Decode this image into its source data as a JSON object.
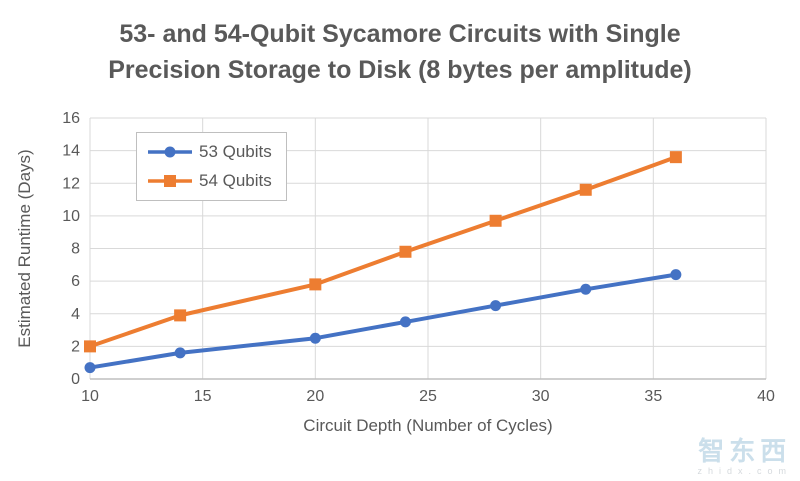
{
  "title": {
    "line1": "53- and 54-Qubit Sycamore Circuits with Single",
    "line2": "Precision Storage to Disk (8 bytes per amplitude)"
  },
  "watermark": {
    "brand": "智东西",
    "domain": "zhidx.com"
  },
  "chart_data": {
    "type": "line",
    "x": [
      10,
      14,
      20,
      24,
      28,
      32,
      36
    ],
    "series": [
      {
        "name": "53 Qubits",
        "values": [
          0.7,
          1.6,
          2.5,
          3.5,
          4.5,
          5.5,
          6.4
        ],
        "color": "#4472C4",
        "marker": "circle"
      },
      {
        "name": "54 Qubits",
        "values": [
          2.0,
          3.9,
          5.8,
          7.8,
          9.7,
          11.6,
          13.6
        ],
        "color": "#ED7D31",
        "marker": "square"
      }
    ],
    "xlabel": "Circuit Depth (Number of Cycles)",
    "ylabel": "Estimated Runtime (Days)",
    "xlim": [
      10,
      40
    ],
    "ylim": [
      0,
      16
    ],
    "x_ticks": [
      10,
      15,
      20,
      25,
      30,
      35,
      40
    ],
    "y_ticks": [
      0,
      2,
      4,
      6,
      8,
      10,
      12,
      14,
      16
    ],
    "grid": true,
    "legend_position": "top-left",
    "colors": {
      "grid": "#D9D9D9",
      "axis": "#BFBFBF",
      "text": "#595959"
    }
  }
}
